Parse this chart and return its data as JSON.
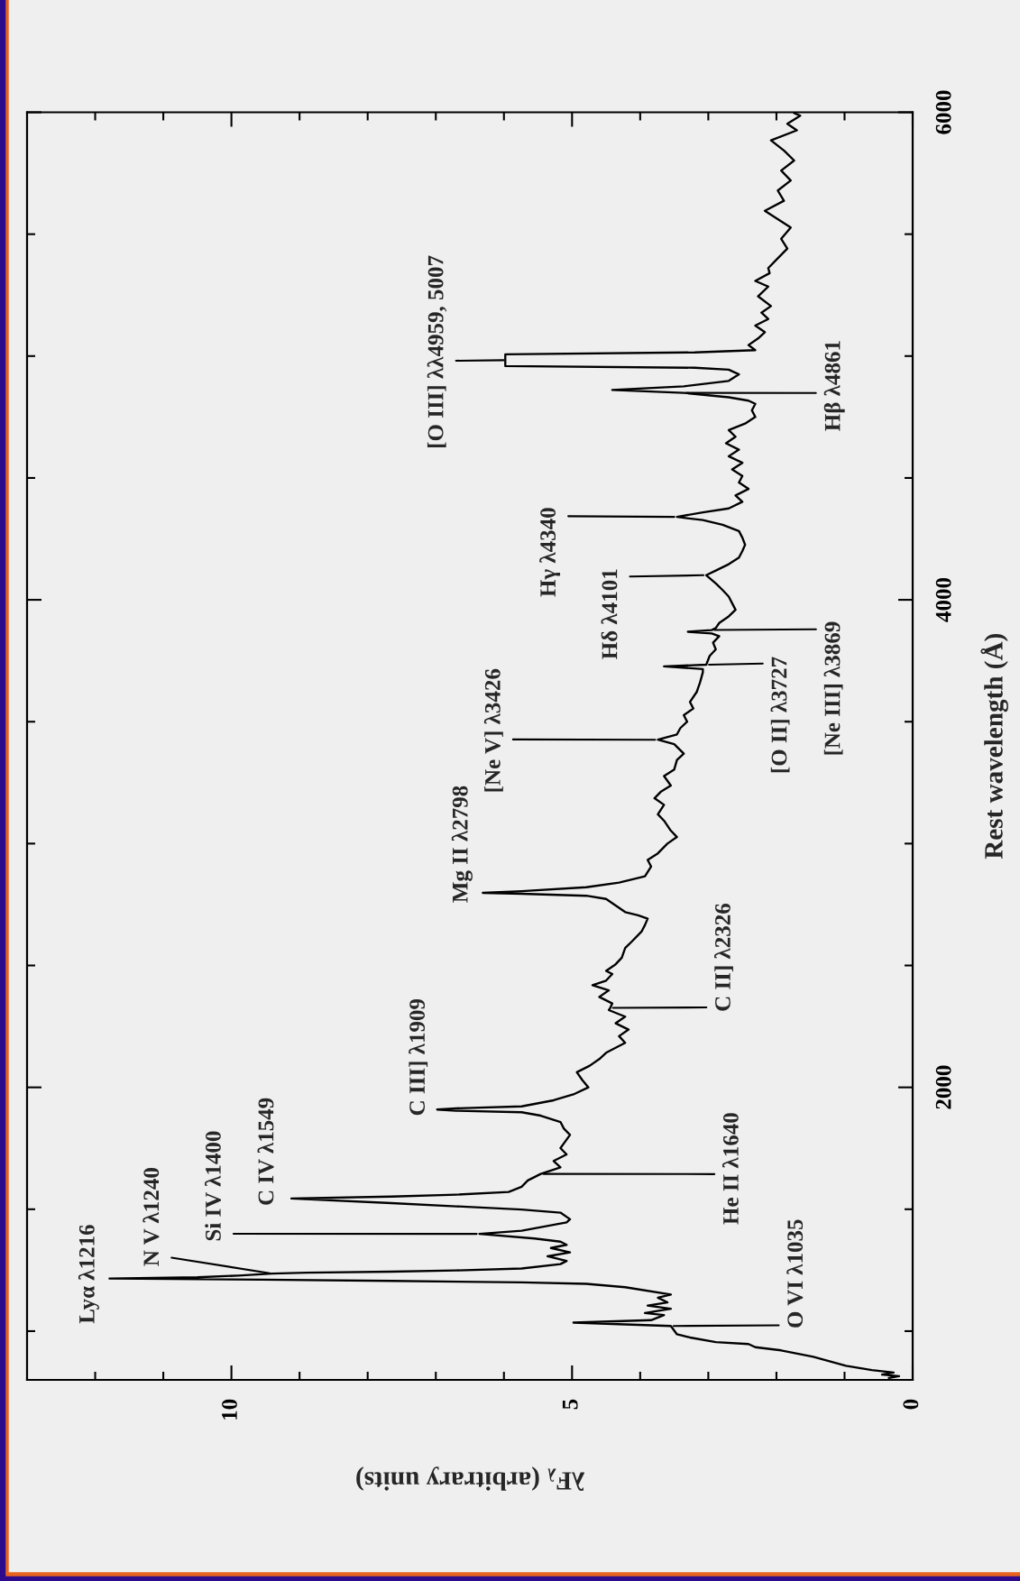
{
  "chart_data": {
    "type": "line",
    "orientation": "horizontal",
    "xlabel": "λF$_{λ}$ (arbitrary units)",
    "ylabel": "Rest wavelength (Å)",
    "xlim": [
      13,
      0
    ],
    "xticks": [
      0,
      {
        "value": 1,
        "label": null
      },
      {
        "value": 2,
        "label": null
      },
      {
        "value": 3,
        "label": null
      },
      {
        "value": 4,
        "label": null
      },
      5,
      {
        "value": 6,
        "label": null
      },
      {
        "value": 7,
        "label": null
      },
      {
        "value": 8,
        "label": null
      },
      {
        "value": 9,
        "label": null
      },
      10,
      {
        "value": 11,
        "label": null
      },
      {
        "value": 12,
        "label": null
      }
    ],
    "ylim": [
      800,
      6000
    ],
    "yticks": [
      {
        "value": 1000,
        "label": null
      },
      {
        "value": 1500,
        "label": null
      },
      2000,
      {
        "value": 2500,
        "label": null
      },
      {
        "value": 3000,
        "label": null
      },
      {
        "value": 3500,
        "label": null
      },
      4000,
      {
        "value": 4500,
        "label": null
      },
      {
        "value": 5000,
        "label": null
      },
      {
        "value": 5500,
        "label": null
      },
      6000
    ],
    "x": [
      808,
      815,
      822,
      830,
      840,
      858,
      895,
      921,
      934,
      947,
      955,
      974,
      987,
      1021,
      1035,
      1045,
      1066,
      1074,
      1092,
      1105,
      1118,
      1137,
      1150,
      1180,
      1194,
      1200,
      1206,
      1211,
      1216,
      1221,
      1228,
      1236,
      1240,
      1244,
      1249,
      1257,
      1275,
      1288,
      1307,
      1323,
      1341,
      1354,
      1367,
      1380,
      1399,
      1412,
      1446,
      1459,
      1486,
      1499,
      1512,
      1525,
      1544,
      1552,
      1560,
      1571,
      1592,
      1618,
      1645,
      1672,
      1698,
      1725,
      1751,
      1805,
      1831,
      1858,
      1884,
      1898,
      1904,
      1909,
      1914,
      1922,
      1947,
      1971,
      2000,
      2030,
      2062,
      2089,
      2116,
      2142,
      2183,
      2210,
      2237,
      2263,
      2290,
      2317,
      2326,
      2344,
      2371,
      2398,
      2419,
      2438,
      2465,
      2478,
      2505,
      2532,
      2572,
      2599,
      2639,
      2666,
      2692,
      2706,
      2719,
      2746,
      2773,
      2786,
      2794,
      2798,
      2805,
      2821,
      2840,
      2866,
      2906,
      2933,
      2960,
      3000,
      3027,
      3053,
      3094,
      3120,
      3159,
      3186,
      3212,
      3238,
      3277,
      3304,
      3343,
      3369,
      3408,
      3426,
      3448,
      3474,
      3500,
      3527,
      3554,
      3581,
      3622,
      3662,
      3703,
      3716,
      3727,
      3734,
      3770,
      3797,
      3824,
      3851,
      3862,
      3869,
      3876,
      3884,
      3905,
      3932,
      3959,
      3986,
      4013,
      4040,
      4067,
      4101,
      4120,
      4146,
      4173,
      4200,
      4226,
      4255,
      4282,
      4308,
      4327,
      4340,
      4359,
      4375,
      4402,
      4428,
      4455,
      4481,
      4508,
      4535,
      4562,
      4589,
      4616,
      4642,
      4669,
      4696,
      4723,
      4750,
      4777,
      4804,
      4817,
      4831,
      4849,
      4861,
      4876,
      4898,
      4925,
      4944,
      4952,
      4959,
      4983,
      5007,
      5015,
      5024,
      5045,
      5072,
      5098,
      5125,
      5152,
      5178,
      5205,
      5245,
      5285,
      5308,
      5340,
      5361,
      5401,
      5441,
      5481,
      5527,
      5596,
      5637,
      5679,
      5720,
      5761,
      5802,
      5843,
      5885,
      5926,
      5953,
      5986,
      5997
    ],
    "series": [
      {
        "color": "#000000",
        "values": [
          0.35,
          0.2,
          0.45,
          0.28,
          0.6,
          0.98,
          1.46,
          1.93,
          2.31,
          2.41,
          2.89,
          3.27,
          3.46,
          3.55,
          4.98,
          3.84,
          3.65,
          3.93,
          3.55,
          3.89,
          3.6,
          3.74,
          3.55,
          4.22,
          4.79,
          5.74,
          7.65,
          9.55,
          11.79,
          10.5,
          9.9,
          9.4,
          8.9,
          7.65,
          6.7,
          5.74,
          5.17,
          5.08,
          5.36,
          5.03,
          5.31,
          5.08,
          5.17,
          5.55,
          6.36,
          5.74,
          5.08,
          5.03,
          5.17,
          5.74,
          6.7,
          7.65,
          9.12,
          7.65,
          6.7,
          5.93,
          5.74,
          5.65,
          5.46,
          5.17,
          5.27,
          5.08,
          5.17,
          5.03,
          5.12,
          5.17,
          5.46,
          5.74,
          6.7,
          6.98,
          6.7,
          5.74,
          5.27,
          4.98,
          4.76,
          4.85,
          4.93,
          4.74,
          4.6,
          4.5,
          4.22,
          4.31,
          4.17,
          4.36,
          4.22,
          4.46,
          4.44,
          4.41,
          4.6,
          4.46,
          4.7,
          4.5,
          4.41,
          4.5,
          4.36,
          4.27,
          4.22,
          4.12,
          3.98,
          3.93,
          3.89,
          4.03,
          4.22,
          4.36,
          4.5,
          4.79,
          5.74,
          6.31,
          5.74,
          4.79,
          4.31,
          3.93,
          3.84,
          3.89,
          3.74,
          3.6,
          3.46,
          3.55,
          3.65,
          3.74,
          3.65,
          3.79,
          3.7,
          3.55,
          3.65,
          3.5,
          3.46,
          3.36,
          3.5,
          3.74,
          3.46,
          3.41,
          3.31,
          3.36,
          3.22,
          3.27,
          3.17,
          3.12,
          3.08,
          3.08,
          3.65,
          3.03,
          2.98,
          2.89,
          2.93,
          2.84,
          2.95,
          3.3,
          2.95,
          2.89,
          2.84,
          2.7,
          2.6,
          2.65,
          2.7,
          2.79,
          2.89,
          3.03,
          2.89,
          2.7,
          2.55,
          2.5,
          2.46,
          2.5,
          2.55,
          2.79,
          3.08,
          3.46,
          3.08,
          2.7,
          2.5,
          2.6,
          2.41,
          2.55,
          2.5,
          2.65,
          2.5,
          2.7,
          2.55,
          2.74,
          2.6,
          2.7,
          2.46,
          2.31,
          2.36,
          2.31,
          2.41,
          2.7,
          3.36,
          4.41,
          3.36,
          2.7,
          2.55,
          2.7,
          3.2,
          5.98,
          5.98,
          5.98,
          3.2,
          2.31,
          2.41,
          2.27,
          2.17,
          2.31,
          2.12,
          2.22,
          2.08,
          2.27,
          2.12,
          2.31,
          2.1,
          2.12,
          1.98,
          1.84,
          1.93,
          1.79,
          2.17,
          1.89,
          1.98,
          1.79,
          1.93,
          1.74,
          1.89,
          2.08,
          1.7,
          1.84,
          1.65,
          1.74
        ]
      }
    ],
    "annotations": [
      {
        "text": "Lyα λ1216",
        "x": 11.79,
        "y": 1216
      },
      {
        "text": "N V λ1240",
        "x": 9.4,
        "y": 1236
      },
      {
        "text": "Si IV λ1400",
        "x": 6.36,
        "y": 1399
      },
      {
        "text": "C IV λ1549",
        "x": 9.12,
        "y": 1544
      },
      {
        "text": "He II λ1640",
        "x": 5.46,
        "y": 1645
      },
      {
        "text": "O VI λ1035",
        "x": 3.55,
        "y": 1021
      },
      {
        "text": "C III] λ1909",
        "x": 6.98,
        "y": 1909
      },
      {
        "text": "C II] λ2326",
        "x": 4.44,
        "y": 2326
      },
      {
        "text": "Mg II λ2798",
        "x": 6.31,
        "y": 2798
      },
      {
        "text": "[Ne V] λ3426",
        "x": 3.74,
        "y": 3426
      },
      {
        "text": "[O II] λ3727",
        "x": 3.03,
        "y": 3734
      },
      {
        "text": "[Ne III] λ3869",
        "x": 2.95,
        "y": 3876
      },
      {
        "text": "Hδ λ4101",
        "x": 3.03,
        "y": 4101
      },
      {
        "text": "Hγ λ4340",
        "x": 3.46,
        "y": 4340
      },
      {
        "text": "Hβ λ4861",
        "x": 3.36,
        "y": 4849
      },
      {
        "text": "[O III] λλ4959, 5007",
        "x": 5.98,
        "y": 4983
      }
    ]
  }
}
